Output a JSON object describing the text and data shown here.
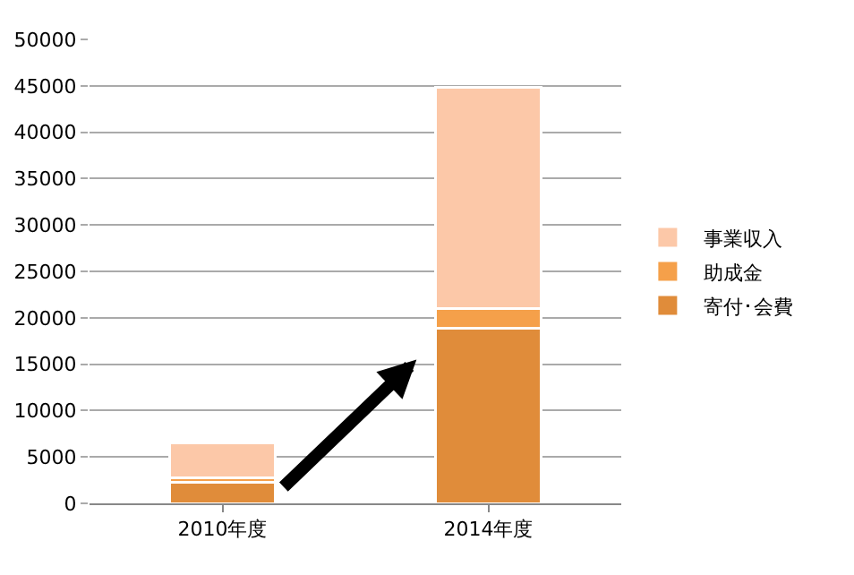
{
  "chart_data": {
    "type": "bar",
    "stacked": true,
    "categories": [
      "2010年度",
      "2014年度"
    ],
    "series": [
      {
        "name": "寄付･会費",
        "color": "#e08c3a",
        "values": [
          2300,
          18900
        ]
      },
      {
        "name": "助成金",
        "color": "#f5a04a",
        "values": [
          500,
          2100
        ]
      },
      {
        "name": "事業収入",
        "color": "#fcc8a8",
        "values": [
          3700,
          23800
        ]
      }
    ],
    "ylim": [
      0,
      50000
    ],
    "yticks": [
      0,
      5000,
      10000,
      15000,
      20000,
      25000,
      30000,
      35000,
      40000,
      45000,
      50000
    ],
    "grid": "y",
    "legend": "right"
  }
}
